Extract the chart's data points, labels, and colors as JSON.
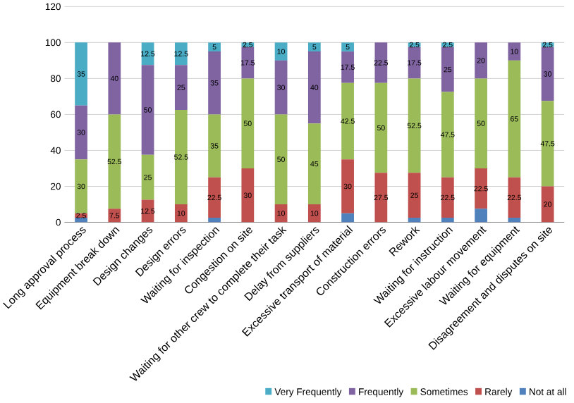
{
  "chart_data": {
    "type": "bar",
    "stacked": true,
    "categories": [
      "Long approval process",
      "Equipment break down",
      "Design changes",
      "Design errors",
      "Waiting for inspection",
      "Congestion on site",
      "Waiting for other crew to complete their task",
      "Delay from suppliers",
      "Excessive transport of material",
      "Construction errors",
      "Rework",
      "Waiting for instruction",
      "Excessive labour movement",
      "Waiting for equipment",
      "Disagreement and disputes on site"
    ],
    "series": [
      {
        "name": "Not at all",
        "color": "#4f81bd",
        "values": [
          2.5,
          0,
          0,
          0,
          2.5,
          0,
          0,
          0,
          5,
          0,
          2.5,
          2.5,
          7.5,
          2.5,
          0
        ],
        "value_labels": [
          null,
          null,
          null,
          null,
          null,
          null,
          null,
          null,
          null,
          null,
          null,
          null,
          null,
          null,
          null
        ]
      },
      {
        "name": "Rarely",
        "color": "#c0504d",
        "values": [
          2.5,
          7.5,
          12.5,
          10,
          22.5,
          30,
          10,
          10,
          30,
          27.5,
          25,
          22.5,
          22.5,
          22.5,
          20
        ],
        "value_labels": [
          "2.5",
          "7.5",
          "12.5",
          "10",
          "22.5",
          "30",
          "10",
          "10",
          "30",
          "27.5",
          "25",
          "22.5",
          "22.5",
          "22.5",
          "20"
        ]
      },
      {
        "name": "Sometimes",
        "color": "#9bbb59",
        "values": [
          30,
          52.5,
          25,
          52.5,
          35,
          50,
          50,
          45,
          42.5,
          50,
          52.5,
          47.5,
          50,
          65,
          47.5
        ],
        "value_labels": [
          "30",
          "52.5",
          "25",
          "52.5",
          "35",
          "50",
          "50",
          "45",
          "42.5",
          "50",
          "52.5",
          "47.5",
          "50",
          "65",
          "47.5"
        ]
      },
      {
        "name": "Frequently",
        "color": "#8064a2",
        "values": [
          30,
          40,
          50,
          25,
          35,
          17.5,
          30,
          40,
          17.5,
          22.5,
          17.5,
          25,
          20,
          10,
          30
        ],
        "value_labels": [
          "30",
          "40",
          "50",
          "25",
          "35",
          "17.5",
          "30",
          "40",
          "17.5",
          "22.5",
          "17.5",
          "25",
          "20",
          "10",
          "30"
        ]
      },
      {
        "name": "Very Frequently",
        "color": "#4bacc6",
        "values": [
          35,
          0,
          12.5,
          12.5,
          5,
          2.5,
          10,
          5,
          5,
          0,
          2.5,
          2.5,
          0,
          0,
          2.5
        ],
        "value_labels": [
          "35",
          null,
          "12.5",
          "12.5",
          "5",
          "2.5",
          "10",
          "5",
          "5",
          null,
          "2.5",
          "2.5",
          null,
          null,
          "2.5"
        ]
      }
    ],
    "ylim": [
      0,
      120
    ],
    "yticks": [
      0,
      20,
      40,
      60,
      80,
      100,
      120
    ],
    "grid": "y",
    "legend": "bottom"
  }
}
